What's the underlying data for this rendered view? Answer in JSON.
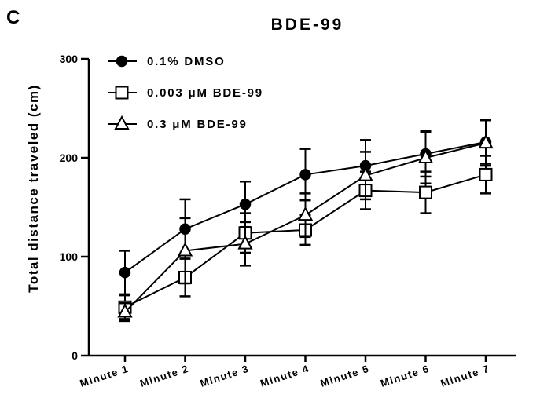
{
  "panel_letter": "C",
  "chart_data": {
    "type": "line",
    "title": "BDE-99",
    "ylabel": "Total distance traveled (cm)",
    "xlabel": "",
    "categories": [
      "Minute 1",
      "Minute 2",
      "Minute 3",
      "Minute 4",
      "Minute 5",
      "Minute 6",
      "Minute 7"
    ],
    "ylim": [
      0,
      300
    ],
    "yticks": [
      0,
      100,
      200,
      300
    ],
    "grid": false,
    "legend_position": "top-left",
    "series": [
      {
        "name": "0.1% DMSO",
        "marker": "filled-circle",
        "values": [
          84,
          128,
          153,
          183,
          192,
          204,
          216
        ],
        "errors": [
          22,
          30,
          23,
          26,
          26,
          23,
          22
        ]
      },
      {
        "name": "0.003 μM BDE-99",
        "marker": "open-square",
        "values": [
          49,
          79,
          124,
          127,
          167,
          165,
          183
        ],
        "errors": [
          12,
          19,
          20,
          15,
          19,
          21,
          19
        ]
      },
      {
        "name": "0.3 μM BDE-99",
        "marker": "open-triangle",
        "values": [
          44,
          106,
          113,
          142,
          182,
          200,
          215
        ],
        "errors": [
          9,
          33,
          22,
          22,
          24,
          26,
          23
        ]
      }
    ],
    "colors": {
      "line": "#000000",
      "background": "#ffffff"
    }
  }
}
